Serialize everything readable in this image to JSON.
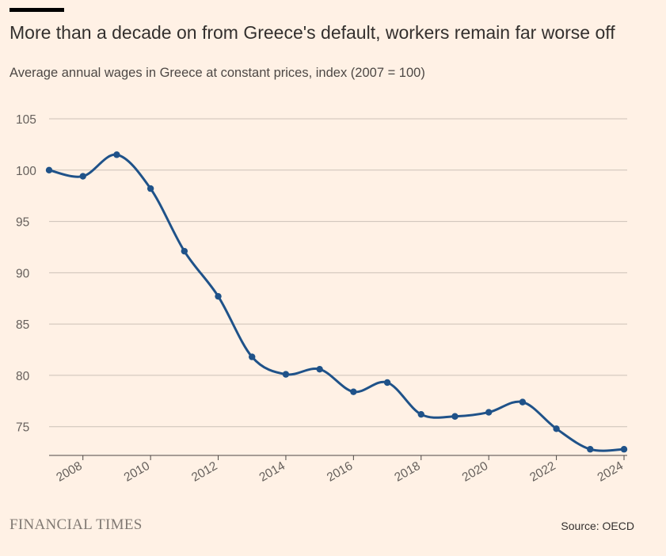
{
  "header": {
    "title": "More than a decade on from Greece's default, workers remain far worse off",
    "subtitle": "Average annual wages in Greece at constant prices, index (2007 = 100)"
  },
  "footer": {
    "logo": "FINANCIAL TIMES",
    "source": "Source: OECD"
  },
  "colors": {
    "background": "#fff1e5",
    "line": "#1f5289",
    "grid": "#ccc1b7"
  },
  "chart_data": {
    "type": "line",
    "title": "More than a decade on from Greece's default, workers remain far worse off",
    "subtitle": "Average annual wages in Greece at constant prices, index (2007 = 100)",
    "x": [
      2007,
      2008,
      2009,
      2010,
      2011,
      2012,
      2013,
      2014,
      2015,
      2016,
      2017,
      2018,
      2019,
      2020,
      2021,
      2022,
      2023,
      2024
    ],
    "series": [
      {
        "values": [
          100.0,
          99.4,
          101.5,
          98.2,
          92.1,
          87.7,
          81.8,
          80.1,
          80.6,
          78.4,
          79.3,
          76.2,
          76.0,
          76.4,
          77.4,
          74.8,
          72.8,
          72.8
        ]
      }
    ],
    "xlim": [
      2007,
      2024
    ],
    "ylim": [
      72.2,
      105
    ],
    "yticks": [
      105,
      100,
      95,
      90,
      85,
      80,
      75
    ],
    "xticks": [
      2008,
      2010,
      2012,
      2014,
      2016,
      2018,
      2020,
      2022,
      2024
    ],
    "grid": true,
    "markers": true,
    "legend": "none"
  }
}
